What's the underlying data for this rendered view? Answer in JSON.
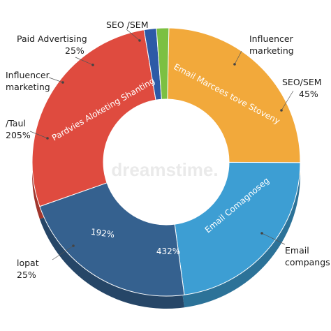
{
  "chart_data": {
    "type": "pie",
    "variant": "donut",
    "title": "",
    "segments": [
      {
        "name": "Email Marcees tove Stoveny",
        "value": 25,
        "color": "#f2a93b"
      },
      {
        "name": "Email Comagnoseg",
        "value": 23,
        "color": "#3d9ed3"
      },
      {
        "name": "432%",
        "value": 22,
        "color": "#35618f"
      },
      {
        "name": "Pardvies Aloketing Shanting",
        "value": 28,
        "color": "#df4b3f"
      },
      {
        "name": "SEO /SEM",
        "value": 1.5,
        "color": "#2d5aa6"
      },
      {
        "name": "SEO /SEM",
        "value": 1.5,
        "color": "#7cc042"
      }
    ],
    "inner_labels": [
      "Email Marcees tove Stoveny",
      "Email Comagnoseg",
      "432%",
      "192%",
      "Pardvies Aloketing Shanting"
    ],
    "callouts": [
      {
        "line1": "SEO /SEM",
        "line2": ""
      },
      {
        "line1": "Paid Advertising",
        "line2": "25%"
      },
      {
        "line1": "Influencer",
        "line2": "marketing"
      },
      {
        "line1": "Influencer",
        "line2": "marketing"
      },
      {
        "line1": "SEO/SEM",
        "line2": "45%"
      },
      {
        "line1": "/Taul",
        "line2": "205%"
      },
      {
        "line1": "Email",
        "line2": "compangs"
      },
      {
        "line1": "lopat",
        "line2": "25%"
      }
    ],
    "watermark": "dreamstime.",
    "legend": "none",
    "grid": false
  }
}
